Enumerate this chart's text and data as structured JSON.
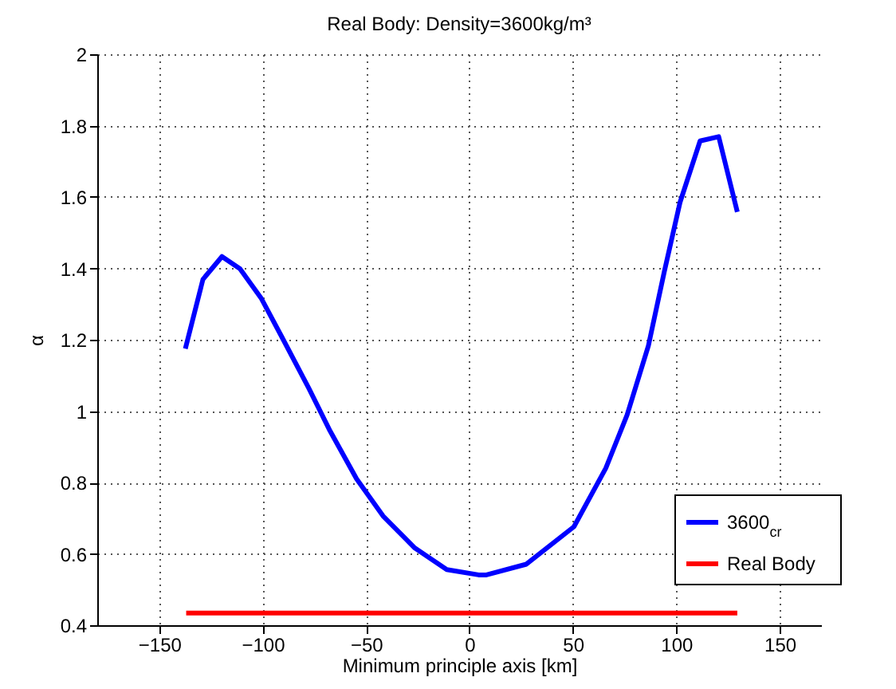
{
  "chart_data": {
    "type": "line",
    "title": "Real Body: Density=3600kg/m³",
    "xlabel": "Minimum principle axis [km]",
    "ylabel": "α",
    "xlim": [
      -180,
      170
    ],
    "xticks": [
      -150,
      -100,
      -50,
      0,
      50,
      100,
      150
    ],
    "ylim": [
      0.4,
      2
    ],
    "yticks": [
      0.4,
      0.6,
      0.8,
      1,
      1.2,
      1.4,
      1.6,
      1.8,
      2
    ],
    "grid": true,
    "legend": "bottom right",
    "line_style": "solid",
    "marker": "none",
    "series": [
      {
        "name": "3600$_{cr}$",
        "color": "#0000ff",
        "x": [
          -137.4,
          -128.9,
          -119.7,
          -111,
          -100.8,
          -90.5,
          -77.7,
          -67.4,
          -54.6,
          -41.8,
          -26.4,
          -11,
          4.4,
          8.2,
          27.5,
          50.5,
          65.9,
          76.2,
          86.5,
          94.2,
          101.8,
          111.5,
          120.5,
          129.5
        ],
        "values": [
          1.175,
          1.369,
          1.433,
          1.399,
          1.317,
          1.205,
          1.064,
          0.944,
          0.81,
          0.706,
          0.616,
          0.556,
          0.541,
          0.541,
          0.571,
          0.676,
          0.84,
          0.989,
          1.183,
          1.391,
          1.585,
          1.757,
          1.769,
          1.558
        ]
      },
      {
        "name": "Real Body",
        "color": "#ff0000",
        "x": [
          -137,
          129.5
        ],
        "values": [
          0.434,
          0.434
        ]
      }
    ]
  }
}
